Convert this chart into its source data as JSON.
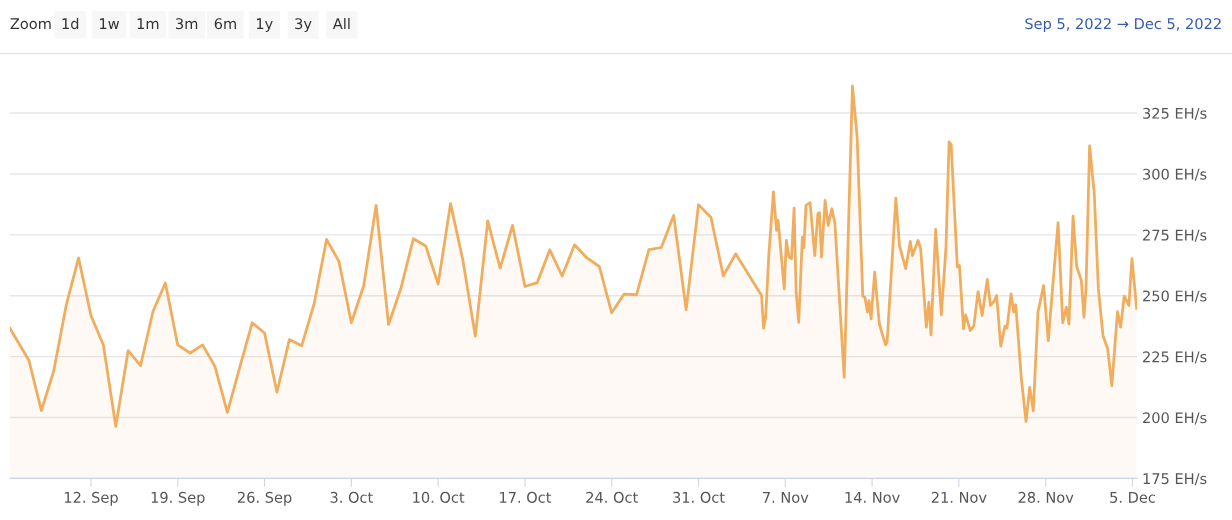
{
  "chart_data": {
    "type": "area",
    "annotations": [
      "Zoom",
      "1d",
      "1w",
      "1m",
      "3m",
      "6m",
      "1y",
      "3y",
      "All",
      "Sep 5, 2022 → Dec 5, 2022"
    ],
    "x": [
      "2022-09-05T11:00",
      "2022-09-07",
      "2022-09-08",
      "2022-09-09",
      "2022-09-10",
      "2022-09-11",
      "2022-09-12",
      "2022-09-13",
      "2022-09-14",
      "2022-09-15",
      "2022-09-16",
      "2022-09-17",
      "2022-09-18",
      "2022-09-19",
      "2022-09-20",
      "2022-09-21",
      "2022-09-22",
      "2022-09-23",
      "2022-09-24",
      "2022-09-25",
      "2022-09-26",
      "2022-09-27",
      "2022-09-28",
      "2022-09-29",
      "2022-09-30",
      "2022-10-01",
      "2022-10-02",
      "2022-10-03",
      "2022-10-04",
      "2022-10-05",
      "2022-10-06",
      "2022-10-07",
      "2022-10-08",
      "2022-10-09",
      "2022-10-10",
      "2022-10-11",
      "2022-10-12",
      "2022-10-13",
      "2022-10-14",
      "2022-10-15",
      "2022-10-16",
      "2022-10-17",
      "2022-10-18",
      "2022-10-19",
      "2022-10-20",
      "2022-10-21",
      "2022-10-22",
      "2022-10-23",
      "2022-10-24",
      "2022-10-25",
      "2022-10-26",
      "2022-10-27",
      "2022-10-28",
      "2022-10-29",
      "2022-10-30",
      "2022-10-31",
      "2022-11-01",
      "2022-11-02",
      "2022-11-03",
      "2022-11-05T02:00",
      "2022-11-05T06:00",
      "2022-11-05T10:00",
      "2022-11-05T16:00",
      "2022-11-06T01:00",
      "2022-11-06T07:00",
      "2022-11-06T10:00",
      "2022-11-06T22:00",
      "2022-11-07T02:00",
      "2022-11-07T07:00",
      "2022-11-07T12:00",
      "2022-11-07T17:00",
      "2022-11-07T21:00",
      "2022-11-08T02:00",
      "2022-11-08T09:00",
      "2022-11-08T12:00",
      "2022-11-08T16:00",
      "2022-11-09T00:00",
      "2022-11-09T09:00",
      "2022-11-09T15:00",
      "2022-11-09T18:00",
      "2022-11-09T22:00",
      "2022-11-10T05:00",
      "2022-11-10T11:00",
      "2022-11-10T18:00",
      "2022-11-11T00:00",
      "2022-11-11T18:00",
      "2022-11-12T10:00",
      "2022-11-12T19:00",
      "2022-11-13T06:00",
      "2022-11-13T10:00",
      "2022-11-13T15:00",
      "2022-11-13T18:00",
      "2022-11-13T22:00",
      "2022-11-14T05:00",
      "2022-11-14T14:00",
      "2022-11-15T02:00",
      "2022-11-15T05:00",
      "2022-11-15T22:00",
      "2022-11-16T05:00",
      "2022-11-16T17:00",
      "2022-11-17T02:00",
      "2022-11-17T06:00",
      "2022-11-17T17:00",
      "2022-11-17T22:00",
      "2022-11-18T09:00",
      "2022-11-18T14:00",
      "2022-11-18T18:00",
      "2022-11-19T03:00",
      "2022-11-19T14:00",
      "2022-11-19T23:00",
      "2022-11-20T05:00",
      "2022-11-20T09:00",
      "2022-11-20T21:00",
      "2022-11-21T01:00",
      "2022-11-21T09:00",
      "2022-11-21T13:00",
      "2022-11-21T22:00",
      "2022-11-22T05:00",
      "2022-11-22T13:00",
      "2022-11-22T21:00",
      "2022-11-23T07:00",
      "2022-11-23T13:00",
      "2022-11-23T21:00",
      "2022-11-24T01:00",
      "2022-11-24T09:00",
      "2022-11-24T17:00",
      "2022-11-24T21:00",
      "2022-11-25T05:00",
      "2022-11-25T10:00",
      "2022-11-25T14:00",
      "2022-11-26T01:00",
      "2022-11-26T10:00",
      "2022-11-26T17:00",
      "2022-11-27T00:00",
      "2022-11-27T09:00",
      "2022-11-27T20:00",
      "2022-11-28T05:00",
      "2022-11-28T16:00",
      "2022-11-29T00:00",
      "2022-11-29T09:00",
      "2022-11-29T16:00",
      "2022-11-29T21:00",
      "2022-11-30T05:00",
      "2022-11-30T12:00",
      "2022-11-30T21:00",
      "2022-12-01T02:00",
      "2022-12-01T06:00",
      "2022-12-01T13:00",
      "2022-12-01T22:00",
      "2022-12-02T06:00",
      "2022-12-02T15:00",
      "2022-12-03T00:00",
      "2022-12-03T08:00",
      "2022-12-03T19:00",
      "2022-12-04T01:00",
      "2022-12-04T08:00",
      "2022-12-04T17:00",
      "2022-12-04T23:00",
      "2022-12-05T08:00"
    ],
    "series": [
      {
        "color": "#f0ad5e",
        "values": [
          236.7,
          223.4,
          202.8,
          219.2,
          246,
          265.5,
          241.9,
          229.8,
          196.4,
          227.5,
          221.3,
          243.5,
          255.2,
          229.8,
          226.5,
          229.8,
          221,
          202.1,
          220.6,
          238.9,
          234.7,
          210.4,
          232,
          229.5,
          246.7,
          273.1,
          264.1,
          238.9,
          254.2,
          287.1,
          238.2,
          253.1,
          273.4,
          270.4,
          254.8,
          287.8,
          264.5,
          233.4,
          280.7,
          261.3,
          278.9,
          253.8,
          255.4,
          268.9,
          258.1,
          270.9,
          265.5,
          262,
          243,
          250.7,
          250.4,
          268.9,
          269.8,
          283,
          244.2,
          287.4,
          282.2,
          258.2,
          267.2,
          250.1,
          236.7,
          241.2,
          266.5,
          292.6,
          276.8,
          280.9,
          252.8,
          272.7,
          265.9,
          265.2,
          286,
          251.5,
          239.1,
          274.1,
          269.7,
          287.1,
          288.2,
          266.5,
          283.7,
          284.1,
          265.9,
          289.1,
          278.9,
          285.7,
          279.6,
          216.5,
          336.2,
          315.2,
          249.8,
          249.4,
          243.3,
          248,
          240.5,
          259.7,
          238.4,
          229.8,
          230.9,
          290.1,
          270.6,
          261.1,
          272.3,
          266.5,
          272.7,
          269.3,
          237.1,
          247.4,
          233.9,
          277.2,
          242.1,
          270,
          313.2,
          312,
          261.8,
          262.4,
          236.4,
          242.1,
          235.7,
          237.7,
          251.7,
          241.9,
          256.7,
          246,
          248,
          250.1,
          229.3,
          237.5,
          236.7,
          250.8,
          243.3,
          246.3,
          215.8,
          198.3,
          212.4,
          202.8,
          243.3,
          254.2,
          231.6,
          260,
          280,
          238.9,
          245.3,
          238.4,
          282.7,
          262,
          256.3,
          241.2,
          252.8,
          311.5,
          291.9,
          252.8,
          233.6,
          228.2,
          213.1,
          243.5,
          237.1,
          249.8,
          246,
          265.2,
          244.9
        ]
      }
    ],
    "xlim": [
      "2022-09-05T11:00",
      "2022-12-05T09:00"
    ],
    "xticks": [
      {
        "value": "2022-09-12",
        "label": "12. Sep"
      },
      {
        "value": "2022-09-19",
        "label": "19. Sep"
      },
      {
        "value": "2022-09-26",
        "label": "26. Sep"
      },
      {
        "value": "2022-10-03",
        "label": "3. Oct"
      },
      {
        "value": "2022-10-10",
        "label": "10. Oct"
      },
      {
        "value": "2022-10-17",
        "label": "17. Oct"
      },
      {
        "value": "2022-10-24",
        "label": "24. Oct"
      },
      {
        "value": "2022-10-31",
        "label": "31. Oct"
      },
      {
        "value": "2022-11-07",
        "label": "7. Nov"
      },
      {
        "value": "2022-11-14",
        "label": "14. Nov"
      },
      {
        "value": "2022-11-21",
        "label": "21. Nov"
      },
      {
        "value": "2022-11-28",
        "label": "28. Nov"
      },
      {
        "value": "2022-12-05",
        "label": "5. Dec"
      }
    ],
    "ylim": [
      175,
      349
    ],
    "yticks": [
      {
        "value": 175,
        "label": "175 EH/s"
      },
      {
        "value": 200,
        "label": "200 EH/s"
      },
      {
        "value": 225,
        "label": "225 EH/s"
      },
      {
        "value": 250,
        "label": "250 EH/s"
      },
      {
        "value": 275,
        "label": "275 EH/s"
      },
      {
        "value": 300,
        "label": "300 EH/s"
      },
      {
        "value": 325,
        "label": "325 EH/s"
      }
    ],
    "grid": "y",
    "legend": false
  }
}
